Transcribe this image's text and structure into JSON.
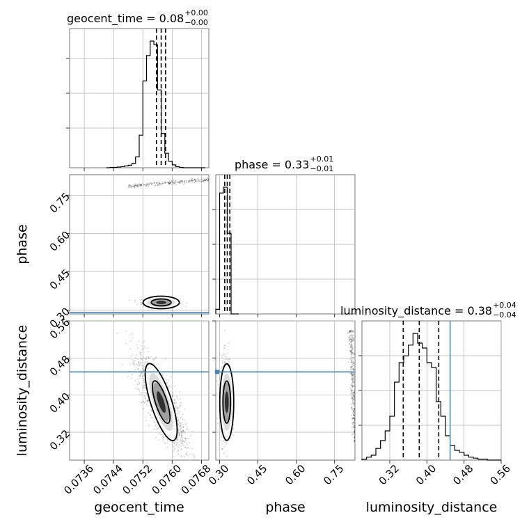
{
  "chart_data": {
    "type": "corner",
    "parameters": [
      {
        "name": "geocent_time",
        "label": "geocent_time",
        "range": [
          0.0732,
          0.077
        ],
        "ticks": [
          "0.0736",
          "0.0744",
          "0.0752",
          "0.0760",
          "0.0768"
        ],
        "tick_values": [
          0.0736,
          0.0744,
          0.0752,
          0.076,
          0.0768
        ],
        "median": 0.0757,
        "q_low": 0.07557,
        "q_high": 0.07582,
        "title": "geocent_time = 0.08",
        "title_plus": "+0.00",
        "title_minus": "−0.00",
        "truth": null
      },
      {
        "name": "phase",
        "label": "phase",
        "range": [
          0.285,
          0.83
        ],
        "ticks": [
          "0.30",
          "0.45",
          "0.60",
          "0.75"
        ],
        "tick_values": [
          0.3,
          0.45,
          0.6,
          0.75
        ],
        "median": 0.33,
        "q_low": 0.32,
        "q_high": 0.34,
        "title": "phase = 0.33",
        "title_plus": "+0.01",
        "title_minus": "−0.01",
        "truth": 0.29
      },
      {
        "name": "luminosity_distance",
        "label": "luminosity_distance",
        "range": [
          0.26,
          0.56
        ],
        "ticks": [
          "0.32",
          "0.40",
          "0.48",
          "0.56"
        ],
        "tick_values": [
          0.32,
          0.4,
          0.48,
          0.56
        ],
        "median": 0.3835,
        "q_low": 0.349,
        "q_high": 0.4255,
        "title": "luminosity_distance = 0.38",
        "title_plus": "+0.04",
        "title_minus": "−0.04",
        "truth": 0.45
      }
    ],
    "histograms": [
      {
        "param": "geocent_time",
        "bin_edges": [
          0.0742,
          0.0743,
          0.0744,
          0.0745,
          0.0746,
          0.0747,
          0.0748,
          0.0749,
          0.075,
          0.0751,
          0.0752,
          0.0753,
          0.0754,
          0.0755,
          0.0756,
          0.0757,
          0.0758,
          0.0759,
          0.076,
          0.0761,
          0.0762,
          0.0763,
          0.0764,
          0.0765,
          0.0766,
          0.0767,
          0.0768,
          0.0769
        ],
        "counts": [
          0,
          1,
          1,
          2,
          3,
          5,
          7,
          12,
          30,
          90,
          240,
          310,
          350,
          340,
          215,
          95,
          40,
          18,
          8,
          3,
          1,
          0,
          0,
          0,
          0,
          0,
          0
        ]
      },
      {
        "param": "phase",
        "bin_edges": [
          0.285,
          0.3,
          0.315,
          0.33,
          0.345,
          0.36,
          0.375
        ],
        "counts": [
          8,
          210,
          220,
          140,
          0,
          0
        ]
      },
      {
        "param": "luminosity_distance",
        "bin_edges": [
          0.26,
          0.27,
          0.28,
          0.29,
          0.3,
          0.31,
          0.32,
          0.33,
          0.34,
          0.35,
          0.36,
          0.37,
          0.38,
          0.39,
          0.4,
          0.41,
          0.42,
          0.43,
          0.44,
          0.45,
          0.46,
          0.47,
          0.48,
          0.49,
          0.5,
          0.51,
          0.52,
          0.53,
          0.54,
          0.55,
          0.56
        ],
        "counts": [
          1,
          3,
          5,
          12,
          20,
          30,
          45,
          80,
          100,
          107,
          118,
          130,
          120,
          115,
          100,
          95,
          60,
          45,
          25,
          15,
          10,
          8,
          5,
          3,
          2,
          1,
          1,
          0,
          0,
          0
        ]
      }
    ]
  }
}
